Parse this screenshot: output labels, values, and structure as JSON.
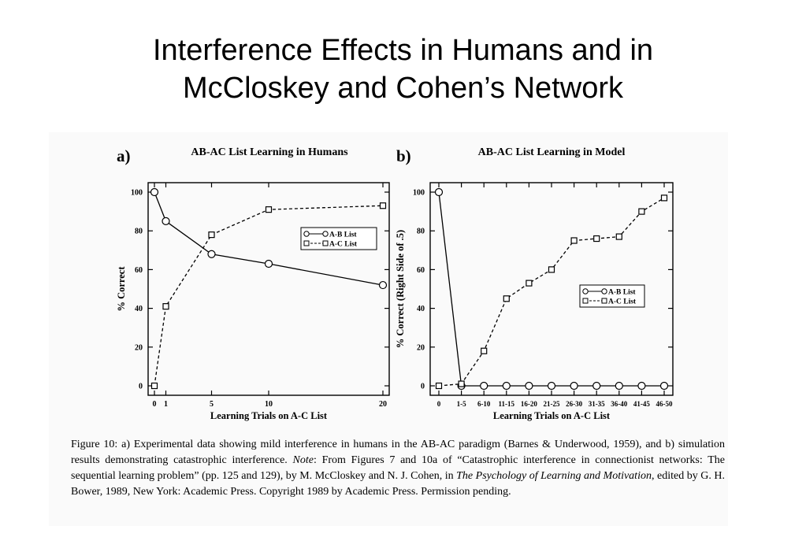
{
  "slide": {
    "title_line1": "Interference Effects in Humans and in",
    "title_line2": "McCloskey and Cohen’s Network"
  },
  "chart_data": [
    {
      "type": "line",
      "panel_label": "a)",
      "title": "AB-AC List Learning in Humans",
      "xlabel": "Learning Trials on A-C List",
      "ylabel": "% Correct",
      "xlim": [
        0,
        20
      ],
      "ylim": [
        0,
        100
      ],
      "xticks": [
        0,
        1,
        5,
        10,
        20
      ],
      "yticks": [
        0,
        20,
        40,
        60,
        80,
        100
      ],
      "legend_position": "upper-right",
      "series": [
        {
          "name": "A-B List",
          "marker": "circle",
          "line": "solid",
          "points": [
            [
              0,
              100
            ],
            [
              1,
              85
            ],
            [
              5,
              68
            ],
            [
              10,
              63
            ],
            [
              20,
              52
            ]
          ]
        },
        {
          "name": "A-C List",
          "marker": "square",
          "line": "dashed",
          "points": [
            [
              0,
              0
            ],
            [
              1,
              41
            ],
            [
              5,
              78
            ],
            [
              10,
              91
            ],
            [
              20,
              93
            ]
          ]
        }
      ]
    },
    {
      "type": "line",
      "panel_label": "b)",
      "title": "AB-AC List Learning in Model",
      "xlabel": "Learning Trials on A-C List",
      "ylabel": "% Correct (Right Side of .5)",
      "ylim": [
        0,
        100
      ],
      "categories": [
        "0",
        "1-5",
        "6-10",
        "11-15",
        "16-20",
        "21-25",
        "26-30",
        "31-35",
        "36-40",
        "41-45",
        "46-50"
      ],
      "yticks": [
        0,
        20,
        40,
        60,
        80,
        100
      ],
      "legend_position": "center-right",
      "series": [
        {
          "name": "A-B List",
          "marker": "circle",
          "line": "solid",
          "values": [
            100,
            0,
            0,
            0,
            0,
            0,
            0,
            0,
            0,
            0,
            0
          ]
        },
        {
          "name": "A-C List",
          "marker": "square",
          "line": "dashed",
          "values": [
            0,
            1,
            18,
            45,
            53,
            60,
            75,
            76,
            77,
            90,
            97
          ]
        }
      ]
    }
  ],
  "caption": {
    "p1": "Figure 10: a) Experimental data showing mild interference in humans in the AB-AC paradigm (Barnes & Underwood, 1959), and b) simulation results demonstrating catastrophic interference. ",
    "note_label": "Note",
    "p2": ": From Figures 7 and 10a of “Catastrophic interference in connectionist networks: The sequential learning problem” (pp. 125 and 129), by M. McCloskey and N. J. Cohen, in ",
    "book": "The Psychology of Learning and Motivation",
    "p3": ", edited by G. H. Bower, 1989, New York: Academic Press. Copyright 1989 by Academic Press. Permission pending."
  }
}
